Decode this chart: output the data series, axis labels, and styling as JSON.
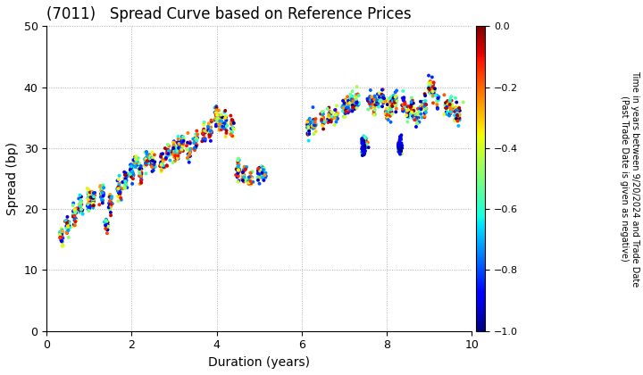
{
  "title": "(7011)   Spread Curve based on Reference Prices",
  "xlabel": "Duration (years)",
  "ylabel": "Spread (bp)",
  "xlim": [
    0,
    10
  ],
  "ylim": [
    0,
    50
  ],
  "xticks": [
    0,
    2,
    4,
    6,
    8,
    10
  ],
  "yticks": [
    0,
    10,
    20,
    30,
    40,
    50
  ],
  "colorbar_label_line1": "Time in years between 9/20/2024 and Trade Date",
  "colorbar_label_line2": "(Past Trade Date is given as negative)",
  "cbar_ticks": [
    0.0,
    -0.2,
    -0.4,
    -0.6,
    -0.8,
    -1.0
  ],
  "cmap": "jet",
  "background_color": "#ffffff",
  "grid_color": "#b0b0b0",
  "point_size": 8,
  "figwidth": 7.2,
  "figheight": 4.2,
  "dpi": 100
}
